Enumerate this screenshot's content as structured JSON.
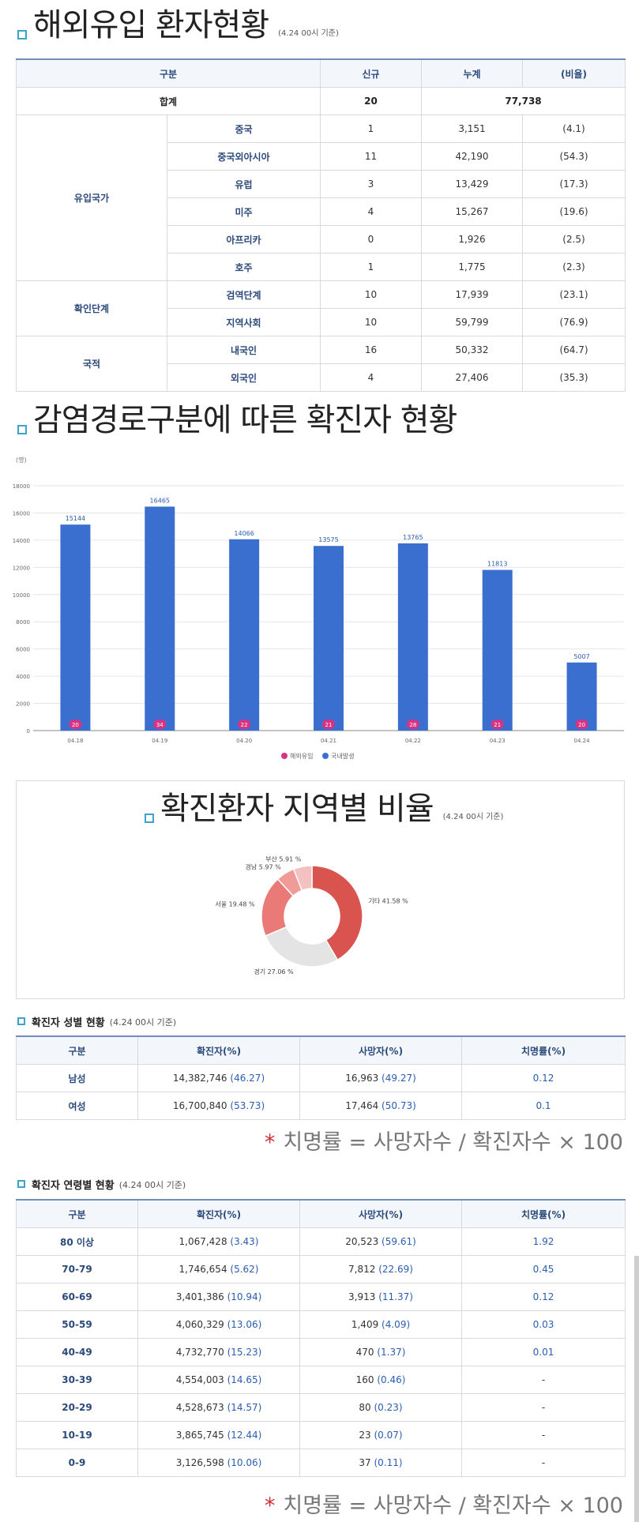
{
  "overseas": {
    "title": "해외유입 환자현황",
    "date": "(4.24 00시 기준)",
    "headers": [
      "구분",
      "신규",
      "누계",
      "(비율)"
    ],
    "total": {
      "label": "합계",
      "new": "20",
      "cum": "77,738"
    },
    "groups": [
      {
        "name": "유입국가",
        "rows": [
          {
            "label": "중국",
            "new": "1",
            "cum": "3,151",
            "pct": "(4.1)"
          },
          {
            "label": "중국외아시아",
            "new": "11",
            "cum": "42,190",
            "pct": "(54.3)"
          },
          {
            "label": "유럽",
            "new": "3",
            "cum": "13,429",
            "pct": "(17.3)"
          },
          {
            "label": "미주",
            "new": "4",
            "cum": "15,267",
            "pct": "(19.6)"
          },
          {
            "label": "아프리카",
            "new": "0",
            "cum": "1,926",
            "pct": "(2.5)"
          },
          {
            "label": "호주",
            "new": "1",
            "cum": "1,775",
            "pct": "(2.3)"
          }
        ]
      },
      {
        "name": "확인단계",
        "rows": [
          {
            "label": "검역단계",
            "new": "10",
            "cum": "17,939",
            "pct": "(23.1)"
          },
          {
            "label": "지역사회",
            "new": "10",
            "cum": "59,799",
            "pct": "(76.9)"
          }
        ]
      },
      {
        "name": "국적",
        "rows": [
          {
            "label": "내국인",
            "new": "16",
            "cum": "50,332",
            "pct": "(64.7)"
          },
          {
            "label": "외국인",
            "new": "4",
            "cum": "27,406",
            "pct": "(35.3)"
          }
        ]
      }
    ]
  },
  "route": {
    "title": "감염경로구분에 따른 확진자 현황",
    "unit": "(명)"
  },
  "chart_data": [
    {
      "type": "bar",
      "categories": [
        "04.18",
        "04.19",
        "04.20",
        "04.21",
        "04.22",
        "04.23",
        "04.24"
      ],
      "series": [
        {
          "name": "국내발생",
          "values": [
            15144,
            16465,
            14066,
            13575,
            13765,
            11813,
            5007
          ],
          "color": "#3b6fcf"
        },
        {
          "name": "해외유입",
          "values": [
            20,
            34,
            22,
            21,
            28,
            21,
            20
          ],
          "color": "#d63384"
        }
      ],
      "legend_order": [
        "해외유입",
        "국내발생"
      ],
      "ylim": [
        0,
        18000
      ],
      "yticks": [
        0,
        2000,
        4000,
        6000,
        8000,
        10000,
        12000,
        14000,
        16000,
        18000
      ],
      "grid": true,
      "legend_position": "bottom"
    },
    {
      "type": "pie",
      "title": "확진환자 지역별 비율",
      "date": "(4.24 00시 기준)",
      "slices": [
        {
          "label": "기타",
          "value": 41.58,
          "display": "기타 41.58 %",
          "color": "#d9534f"
        },
        {
          "label": "경기",
          "value": 27.06,
          "display": "경기 27.06 %",
          "color": "#e4e4e4"
        },
        {
          "label": "서울",
          "value": 19.48,
          "display": "서울 19.48 %",
          "color": "#ea7a78"
        },
        {
          "label": "경남",
          "value": 5.97,
          "display": "경남 5.97 %",
          "color": "#f19b99"
        },
        {
          "label": "부산",
          "value": 5.91,
          "display": "부산 5.91 %",
          "color": "#f5c1c0"
        }
      ]
    }
  ],
  "gender": {
    "title": "확진자 성별 현황",
    "date": "(4.24 00시 기준)",
    "headers": [
      "구분",
      "확진자(%)",
      "사망자(%)",
      "치명률(%)"
    ],
    "rows": [
      {
        "label": "남성",
        "conf": "14,382,746",
        "conf_pct": "(46.27)",
        "death": "16,963",
        "death_pct": "(49.27)",
        "cfr": "0.12"
      },
      {
        "label": "여성",
        "conf": "16,700,840",
        "conf_pct": "(53.73)",
        "death": "17,464",
        "death_pct": "(50.73)",
        "cfr": "0.1"
      }
    ]
  },
  "formula": {
    "star": "*",
    "text": "치명률 = 사망자수 / 확진자수 × 100"
  },
  "age": {
    "title": "확진자 연령별 현황",
    "date": "(4.24 00시 기준)",
    "headers": [
      "구분",
      "확진자(%)",
      "사망자(%)",
      "치명률(%)"
    ],
    "rows": [
      {
        "label": "80 이상",
        "conf": "1,067,428",
        "conf_pct": "(3.43)",
        "death": "20,523",
        "death_pct": "(59.61)",
        "cfr": "1.92"
      },
      {
        "label": "70-79",
        "conf": "1,746,654",
        "conf_pct": "(5.62)",
        "death": "7,812",
        "death_pct": "(22.69)",
        "cfr": "0.45"
      },
      {
        "label": "60-69",
        "conf": "3,401,386",
        "conf_pct": "(10.94)",
        "death": "3,913",
        "death_pct": "(11.37)",
        "cfr": "0.12"
      },
      {
        "label": "50-59",
        "conf": "4,060,329",
        "conf_pct": "(13.06)",
        "death": "1,409",
        "death_pct": "(4.09)",
        "cfr": "0.03"
      },
      {
        "label": "40-49",
        "conf": "4,732,770",
        "conf_pct": "(15.23)",
        "death": "470",
        "death_pct": "(1.37)",
        "cfr": "0.01"
      },
      {
        "label": "30-39",
        "conf": "4,554,003",
        "conf_pct": "(14.65)",
        "death": "160",
        "death_pct": "(0.46)",
        "cfr": "-"
      },
      {
        "label": "20-29",
        "conf": "4,528,673",
        "conf_pct": "(14.57)",
        "death": "80",
        "death_pct": "(0.23)",
        "cfr": "-"
      },
      {
        "label": "10-19",
        "conf": "3,865,745",
        "conf_pct": "(12.44)",
        "death": "23",
        "death_pct": "(0.07)",
        "cfr": "-"
      },
      {
        "label": "0-9",
        "conf": "3,126,598",
        "conf_pct": "(10.06)",
        "death": "37",
        "death_pct": "(0.11)",
        "cfr": "-"
      }
    ]
  }
}
